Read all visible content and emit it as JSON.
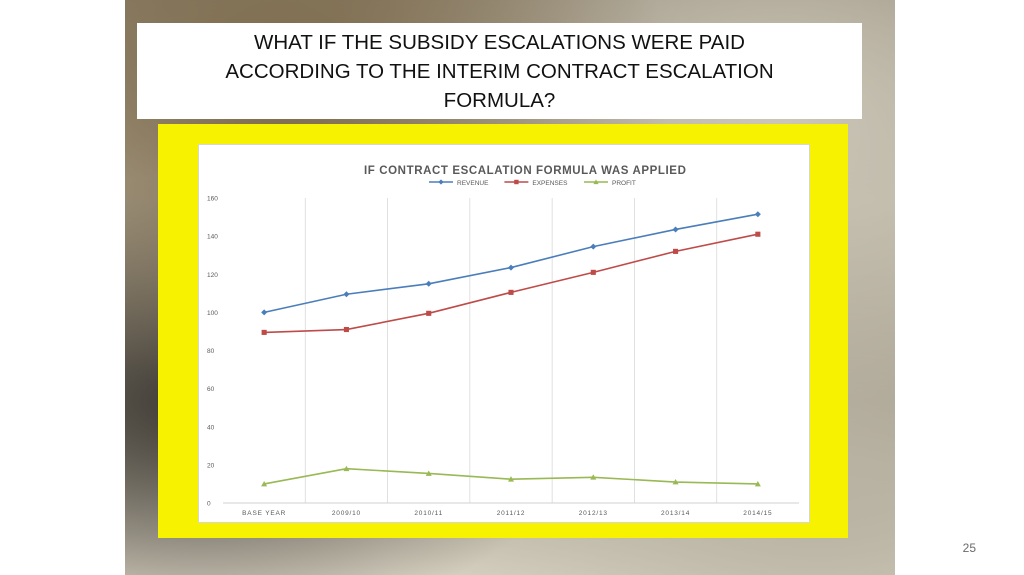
{
  "slide": {
    "title": "WHAT IF THE SUBSIDY ESCALATIONS WERE PAID ACCORDING TO THE INTERIM CONTRACT ESCALATION FORMULA?",
    "page_number": "25"
  },
  "chart_data": {
    "type": "line",
    "title": "IF CONTRACT  ESCALATION  FORMULA  WAS  APPLIED",
    "xlabel": "",
    "ylabel": "",
    "categories": [
      "BASE YEAR",
      "2009/10",
      "2010/11",
      "2011/12",
      "2012/13",
      "2013/14",
      "2014/15"
    ],
    "y_ticks": [
      0,
      20,
      40,
      60,
      80,
      100,
      120,
      140,
      160
    ],
    "ylim": [
      0,
      160
    ],
    "grid": "vertical",
    "legend_position": "top",
    "series": [
      {
        "name": "REVENUE",
        "color": "#4a7ebb",
        "marker": "diamond",
        "values": [
          100,
          109.5,
          115,
          123.5,
          134.5,
          143.5,
          151.5
        ]
      },
      {
        "name": "EXPENSES",
        "color": "#be4b48",
        "marker": "square",
        "values": [
          89.5,
          91,
          99.5,
          110.5,
          121,
          132,
          141
        ]
      },
      {
        "name": "PROFIT",
        "color": "#98b954",
        "marker": "triangle",
        "values": [
          10,
          18,
          15.5,
          12.5,
          13.5,
          11,
          10
        ]
      }
    ]
  }
}
